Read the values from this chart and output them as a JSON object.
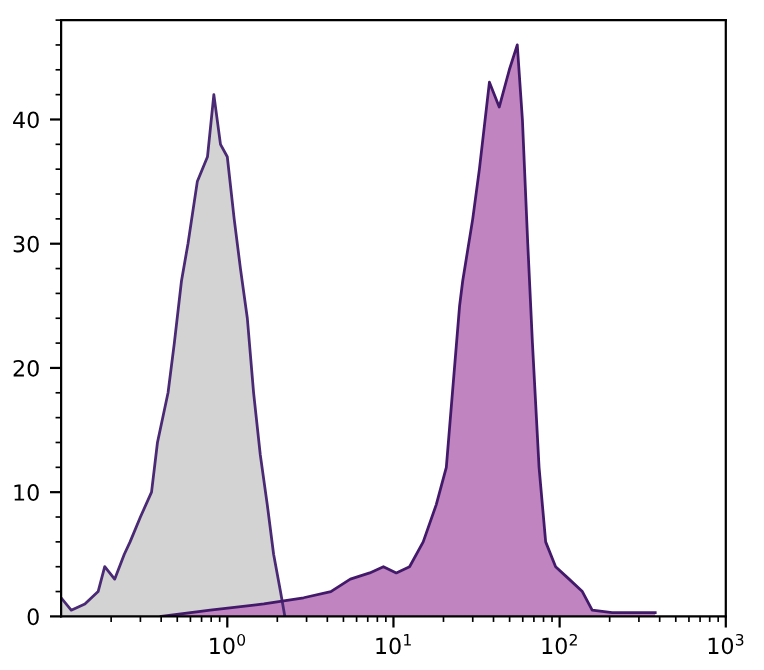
{
  "chart_data": {
    "type": "area",
    "series": [
      {
        "color": "#d3d3d3",
        "x": [
          0.1,
          0.115,
          0.139,
          0.167,
          0.183,
          0.21,
          0.24,
          0.26,
          0.3,
          0.35,
          0.38,
          0.44,
          0.48,
          0.53,
          0.58,
          0.66,
          0.76,
          0.83,
          0.91,
          1.0,
          1.1,
          1.2,
          1.32,
          1.44,
          1.58,
          1.74,
          1.9,
          2.09,
          2.22
        ],
        "values": [
          1.5,
          0.5,
          1,
          2,
          4,
          3,
          5,
          6,
          8,
          10,
          14,
          18,
          22,
          27,
          30,
          35,
          37,
          42,
          38,
          37,
          32,
          28,
          24,
          18,
          13,
          9,
          5,
          2,
          0
        ]
      },
      {
        "color": "#c084c0",
        "x": [
          0.4,
          0.79,
          1.66,
          2.88,
          4.2,
          5.5,
          7.2,
          8.7,
          10.4,
          12.5,
          15.1,
          18.1,
          20.8,
          21.7,
          25,
          26.1,
          30,
          32.9,
          37.8,
          43.3,
          49.8,
          55.6,
          59.7,
          64.3,
          68.6,
          75.2,
          82.4,
          94.6,
          114,
          137,
          157,
          207,
          376
        ],
        "values": [
          0,
          0.5,
          1,
          1.5,
          2,
          3,
          3.5,
          4,
          3.5,
          4,
          6,
          9,
          12,
          15,
          25,
          27,
          32,
          36,
          43,
          41,
          44,
          46,
          40,
          30,
          22,
          12,
          6,
          4,
          3,
          2,
          0.5,
          0.3,
          0.3
        ]
      }
    ],
    "log": "x",
    "xlim": [
      0.1,
      1000
    ],
    "xticks": [
      {
        "value": 1,
        "label": "10$^{0}$"
      },
      {
        "value": 10,
        "label": "10$^{1}$"
      },
      {
        "value": 100,
        "label": "10$^{2}$"
      },
      {
        "value": 1000,
        "label": "10$^{3}$"
      }
    ],
    "ylim": [
      0,
      48
    ],
    "yticks": [
      0,
      10,
      20,
      30,
      40
    ],
    "grid": false,
    "legend": false
  }
}
